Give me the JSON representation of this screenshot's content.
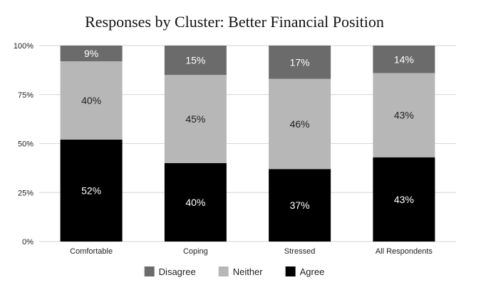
{
  "chart_data": {
    "type": "bar",
    "stacked": true,
    "title": "Responses by Cluster: Better Financial Position",
    "xlabel": "",
    "ylabel": "",
    "ylim": [
      0,
      100
    ],
    "yticks": [
      "0%",
      "25%",
      "50%",
      "75%",
      "100%"
    ],
    "grid": true,
    "legend_position": "bottom",
    "categories": [
      "Comfortable",
      "Coping",
      "Stressed",
      "All Respondents"
    ],
    "series": [
      {
        "name": "Agree",
        "color": "#000000",
        "label_color": "#ffffff",
        "values": [
          52,
          40,
          37,
          43
        ],
        "labels": [
          "52%",
          "40%",
          "37%",
          "43%"
        ]
      },
      {
        "name": "Neither",
        "color": "#b7b7b7",
        "label_color": "#222222",
        "values": [
          40,
          45,
          46,
          43
        ],
        "labels": [
          "40%",
          "45%",
          "46%",
          "43%"
        ]
      },
      {
        "name": "Disagree",
        "color": "#6b6b6b",
        "label_color": "#ffffff",
        "values": [
          9,
          15,
          17,
          14
        ],
        "labels": [
          "9%",
          "15%",
          "17%",
          "14%"
        ]
      }
    ],
    "legend_order": [
      "Disagree",
      "Neither",
      "Agree"
    ]
  }
}
